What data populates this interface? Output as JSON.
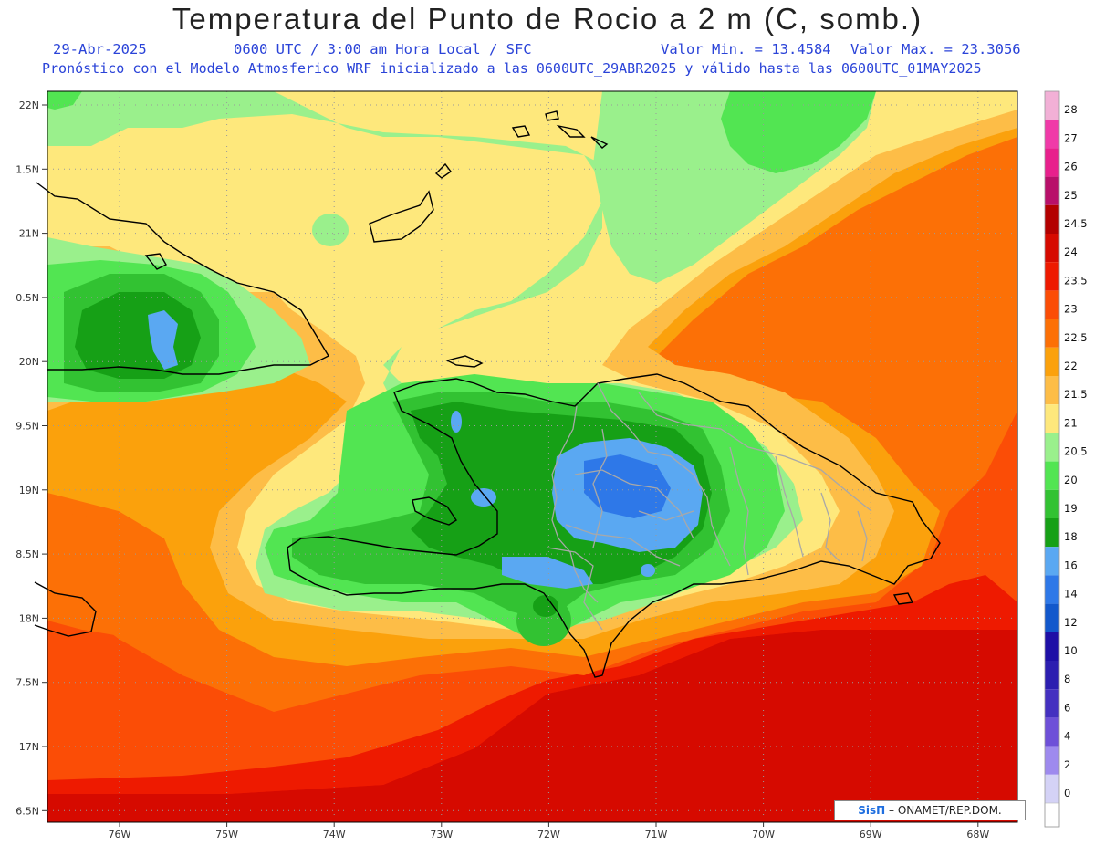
{
  "title": "Temperatura del Punto de Rocio a 2 m (C, somb.)",
  "date": "29-Abr-2025",
  "time_line": "0600 UTC / 3:00 am Hora Local / SFC",
  "min_label": "Valor Min. = 13.4584",
  "max_label": "Valor Max. = 23.3056",
  "model_line": "Pronóstico con el Modelo Atmosferico WRF inicializado a las 0600UTC_29ABR2025 y válido hasta las  0600UTC_01MAY2025",
  "lat_labels": [
    "22N",
    "1.5N",
    "21N",
    "0.5N",
    "20N",
    "9.5N",
    "19N",
    "8.5N",
    "18N",
    "7.5N",
    "17N",
    "6.5N"
  ],
  "lon_labels": [
    "76W",
    "75W",
    "74W",
    "73W",
    "72W",
    "71W",
    "70W",
    "69W",
    "68W"
  ],
  "legend": {
    "labels": [
      "28",
      "27",
      "26",
      "25",
      "24.5",
      "24",
      "23.5",
      "23",
      "22.5",
      "22",
      "21.5",
      "21",
      "20.5",
      "20",
      "19",
      "18",
      "16",
      "14",
      "12",
      "10",
      "8",
      "6",
      "4",
      "2",
      "0"
    ],
    "colors": [
      "#f2b0d6",
      "#f03aa8",
      "#e8208c",
      "#b8106a",
      "#b30000",
      "#d60a00",
      "#ee1a00",
      "#fb4d06",
      "#fc7006",
      "#fba10c",
      "#fdbd47",
      "#fee87c",
      "#9af08c",
      "#52e552",
      "#32c232",
      "#16a016",
      "#5aa8f2",
      "#2e78e8",
      "#1258cc",
      "#1e0fa6",
      "#2c1eb0",
      "#4430c0",
      "#6e50d8",
      "#9e8aee",
      "#d4d2f6"
    ],
    "bottom_color": "#ffffff"
  },
  "credit": {
    "brand": "SisΠ",
    "text": "– ONAMET/REP.DOM."
  },
  "colors": {
    "frame": "#000000",
    "grid": "#9a9a9a",
    "coast": "#000000",
    "provinces": "#a8a8a8"
  }
}
